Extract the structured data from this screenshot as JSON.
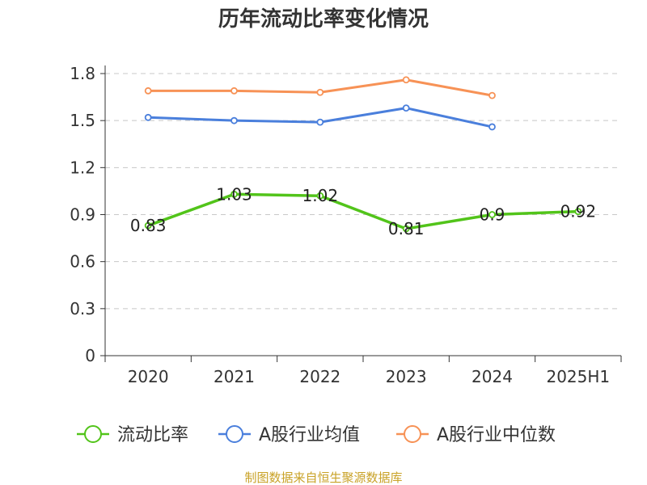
{
  "title": "历年流动比率变化情况",
  "source": "制图数据来自恒生聚源数据库",
  "chart_data": {
    "type": "line",
    "title": "历年流动比率变化情况",
    "categories": [
      "2020",
      "2021",
      "2022",
      "2023",
      "2024",
      "2025H1"
    ],
    "ylim": [
      0,
      1.8
    ],
    "yticks": [
      0,
      0.3,
      0.6,
      0.9,
      1.2,
      1.5,
      1.8
    ],
    "ytick_labels": [
      "0",
      "0.3",
      "0.6",
      "0.9",
      "1.2",
      "1.5",
      "1.8"
    ],
    "grid": true,
    "legend_position": "bottom",
    "series": [
      {
        "name": "流动比率",
        "color": "#52c41a",
        "values": [
          0.83,
          1.03,
          1.02,
          0.81,
          0.9,
          0.92
        ],
        "labels": [
          "0.83",
          "1.03",
          "1.02",
          "0.81",
          "0.9",
          "0.92"
        ]
      },
      {
        "name": "A股行业均值",
        "color": "#4a7fdc",
        "values": [
          1.52,
          1.5,
          1.49,
          1.58,
          1.46,
          null
        ]
      },
      {
        "name": "A股行业中位数",
        "color": "#f79256",
        "values": [
          1.69,
          1.69,
          1.68,
          1.76,
          1.66,
          null
        ]
      }
    ]
  }
}
